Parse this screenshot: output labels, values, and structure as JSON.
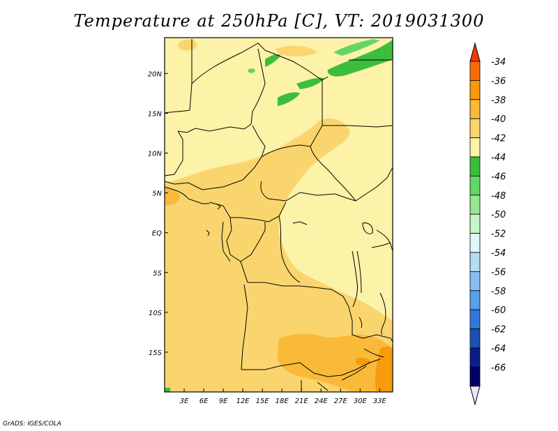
{
  "title": "Temperature at 250hPa [C], VT: 2019031300",
  "credit": "GrADS: IGES/COLA",
  "map": {
    "region": "Central & Southern Africa",
    "lon_range": [
      0,
      35
    ],
    "lat_range": [
      -20,
      24.5
    ],
    "x_ticks": [
      "3E",
      "6E",
      "9E",
      "12E",
      "15E",
      "18E",
      "21E",
      "24E",
      "27E",
      "30E",
      "33E"
    ],
    "x_tick_values": [
      3,
      6,
      9,
      12,
      15,
      18,
      21,
      24,
      27,
      30,
      33
    ],
    "y_ticks": [
      "20N",
      "15N",
      "10N",
      "5N",
      "EQ",
      "5S",
      "10S",
      "15S"
    ],
    "y_tick_values": [
      20,
      15,
      10,
      5,
      0,
      -5,
      -10,
      -15
    ]
  },
  "colorbar": {
    "labels": [
      "-34",
      "-36",
      "-38",
      "-40",
      "-42",
      "-44",
      "-46",
      "-48",
      "-50",
      "-52",
      "-54",
      "-56",
      "-58",
      "-60",
      "-62",
      "-64",
      "-66"
    ],
    "colors": [
      "#f03c0a",
      "#f56d0a",
      "#f79a0c",
      "#f9ba3a",
      "#fad56e",
      "#fcf2a8",
      "#3cbe3c",
      "#64d664",
      "#96e696",
      "#c8f5c8",
      "#e2f5fa",
      "#b4dcf5",
      "#87c0f0",
      "#5aa0e6",
      "#3278dc",
      "#1e50b4",
      "#0a1e8c",
      "#000064",
      "#e6e6fa"
    ]
  },
  "fill_colors": {
    "base": "#fcf2a8",
    "warm1": "#fad56e",
    "warm2": "#f9ba3a",
    "warm3": "#f79a0c",
    "green_dark": "#3cbe3c",
    "green_light": "#64d664"
  }
}
